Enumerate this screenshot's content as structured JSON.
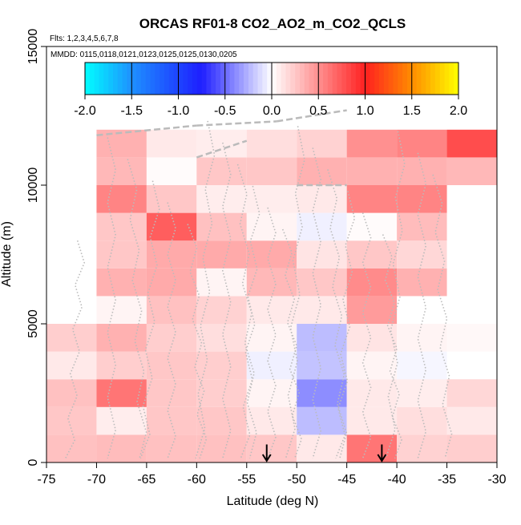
{
  "chart_data": {
    "type": "heatmap",
    "title": "ORCAS RF01-8 CO2_AO2_m_CO2_QCLS",
    "flights_note": "Flts: 1,2,3,4,5,6,7,8",
    "dates_note": "MMDD: 0115,0118,0121,0123,0125,0125,0130,0205",
    "xlabel": "Latitude (deg N)",
    "ylabel": "Altitude (m)",
    "xlim": [
      -75,
      -30
    ],
    "ylim": [
      0,
      15000
    ],
    "x_ticks": [
      -75,
      -70,
      -65,
      -60,
      -55,
      -50,
      -45,
      -40,
      -35,
      -30
    ],
    "x_tick_labels": [
      "-75",
      "-70",
      "-65",
      "-60",
      "-55",
      "-50",
      "-45",
      "-40",
      "-35",
      "-30"
    ],
    "y_ticks": [
      0,
      5000,
      10000,
      15000
    ],
    "y_tick_labels": [
      "0",
      "5000",
      "10000",
      "15000"
    ],
    "colorbar": {
      "min": -2.0,
      "max": 2.0,
      "ticks": [
        -2.0,
        -1.5,
        -1.0,
        -0.5,
        0.0,
        0.5,
        1.0,
        1.5,
        2.0
      ],
      "tick_labels": [
        "-2.0",
        "-1.5",
        "-1.0",
        "-0.5",
        "0.0",
        "0.5",
        "1.0",
        "1.5",
        "2.0"
      ],
      "colors": [
        "#00ffff",
        "#1e90ff",
        "#1e1eff",
        "#ffffff",
        "#ff2020",
        "#ff8c00",
        "#ffff00"
      ],
      "color_positions": [
        -2.0,
        -1.5,
        -0.75,
        0.0,
        1.0,
        1.5,
        2.0
      ]
    },
    "cell_size": {
      "lat": 5,
      "alt": 1000
    },
    "cells": [
      [
        -75,
        0,
        0.28
      ],
      [
        -70,
        0,
        0.3
      ],
      [
        -65,
        0,
        0.28
      ],
      [
        -60,
        0,
        0.28
      ],
      [
        -55,
        0,
        0.25
      ],
      [
        -50,
        0,
        0.1
      ],
      [
        -45,
        0,
        0.62
      ],
      [
        -40,
        0,
        0.2
      ],
      [
        -35,
        0,
        0.22
      ],
      [
        -75,
        1000,
        0.25
      ],
      [
        -70,
        1000,
        0.08
      ],
      [
        -65,
        1000,
        0.25
      ],
      [
        -60,
        1000,
        0.25
      ],
      [
        -55,
        1000,
        0.1
      ],
      [
        -50,
        1000,
        -0.22
      ],
      [
        -45,
        1000,
        0.1
      ],
      [
        -40,
        1000,
        0.15
      ],
      [
        -35,
        1000,
        0.1
      ],
      [
        -75,
        2000,
        0.28
      ],
      [
        -70,
        2000,
        0.62
      ],
      [
        -65,
        2000,
        0.25
      ],
      [
        -60,
        2000,
        0.22
      ],
      [
        -55,
        2000,
        0.05
      ],
      [
        -50,
        2000,
        -0.38
      ],
      [
        -45,
        2000,
        0.1
      ],
      [
        -40,
        2000,
        0.08
      ],
      [
        -35,
        2000,
        0.18
      ],
      [
        -75,
        3000,
        0.1
      ],
      [
        -70,
        3000,
        0.22
      ],
      [
        -65,
        3000,
        0.25
      ],
      [
        -60,
        3000,
        0.22
      ],
      [
        -55,
        3000,
        -0.05
      ],
      [
        -50,
        3000,
        -0.2
      ],
      [
        -45,
        3000,
        0.05
      ],
      [
        -40,
        3000,
        -0.03
      ],
      [
        -75,
        4000,
        0.22
      ],
      [
        -70,
        4000,
        0.35
      ],
      [
        -65,
        4000,
        0.22
      ],
      [
        -60,
        4000,
        0.15
      ],
      [
        -55,
        4000,
        0.05
      ],
      [
        -50,
        4000,
        -0.22
      ],
      [
        -45,
        4000,
        0.12
      ],
      [
        -40,
        4000,
        0.05
      ],
      [
        -35,
        4000,
        0.03
      ],
      [
        -70,
        5000,
        0.05
      ],
      [
        -65,
        5000,
        0.28
      ],
      [
        -60,
        5000,
        0.2
      ],
      [
        -55,
        5000,
        0.1
      ],
      [
        -50,
        5000,
        0.1
      ],
      [
        -45,
        5000,
        0.45
      ],
      [
        -70,
        6000,
        0.35
      ],
      [
        -65,
        6000,
        0.38
      ],
      [
        -60,
        6000,
        0.05
      ],
      [
        -55,
        6000,
        0.32
      ],
      [
        -50,
        6000,
        0.25
      ],
      [
        -45,
        6000,
        0.52
      ],
      [
        -40,
        6000,
        0.35
      ],
      [
        -70,
        7000,
        0.25
      ],
      [
        -65,
        7000,
        0.38
      ],
      [
        -60,
        7000,
        0.38
      ],
      [
        -55,
        7000,
        0.38
      ],
      [
        -50,
        7000,
        0.12
      ],
      [
        -45,
        7000,
        0.25
      ],
      [
        -40,
        7000,
        0.18
      ],
      [
        -70,
        8000,
        0.25
      ],
      [
        -65,
        8000,
        0.72
      ],
      [
        -60,
        8000,
        0.28
      ],
      [
        -55,
        8000,
        0.05
      ],
      [
        -50,
        8000,
        -0.05
      ],
      [
        -45,
        8000,
        0.02
      ],
      [
        -40,
        8000,
        0.3
      ],
      [
        -70,
        9000,
        0.55
      ],
      [
        -65,
        9000,
        0.25
      ],
      [
        -60,
        9000,
        0.08
      ],
      [
        -55,
        9000,
        0.08
      ],
      [
        -50,
        9000,
        0.1
      ],
      [
        -45,
        9000,
        0.55
      ],
      [
        -40,
        9000,
        0.55
      ],
      [
        -70,
        10000,
        0.32
      ],
      [
        -65,
        10000,
        0.02
      ],
      [
        -60,
        10000,
        0.25
      ],
      [
        -55,
        10000,
        0.25
      ],
      [
        -50,
        10000,
        0.35
      ],
      [
        -45,
        10000,
        0.35
      ],
      [
        -40,
        10000,
        0.35
      ],
      [
        -35,
        10000,
        0.32
      ],
      [
        -70,
        11000,
        0.35
      ],
      [
        -65,
        11000,
        0.1
      ],
      [
        -60,
        11000,
        0.08
      ],
      [
        -55,
        11000,
        0.15
      ],
      [
        -50,
        11000,
        0.2
      ],
      [
        -45,
        11000,
        0.5
      ],
      [
        -40,
        11000,
        0.55
      ],
      [
        -35,
        11000,
        0.8
      ]
    ],
    "arrows_lat": [
      -53,
      -41.5
    ],
    "flight_track_color": "#bbbbbb"
  }
}
